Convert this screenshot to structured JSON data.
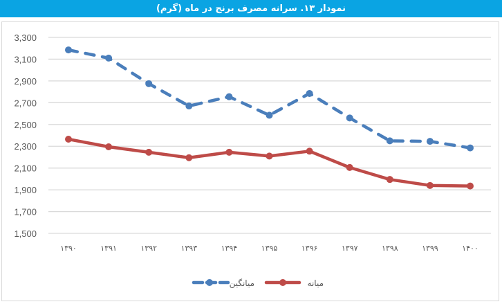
{
  "header": {
    "title": "نمودار ۱۳. سرانه مصرف برنج در ماه (گرم)",
    "background": "#0aa4e3"
  },
  "chart_data": {
    "type": "line",
    "title": "نمودار ۱۳. سرانه مصرف برنج در ماه (گرم)",
    "xlabel": "",
    "ylabel": "",
    "categories": [
      "۱۳۹۰",
      "۱۳۹۱",
      "۱۳۹۲",
      "۱۳۹۳",
      "۱۳۹۴",
      "۱۳۹۵",
      "۱۳۹۶",
      "۱۳۹۷",
      "۱۳۹۸",
      "۱۳۹۹",
      "۱۴۰۰"
    ],
    "series": [
      {
        "name": "میانگین",
        "color": "#4a7ebb",
        "style": "dashed",
        "values": [
          3185,
          3110,
          2875,
          2670,
          2755,
          2585,
          2785,
          2560,
          2350,
          2345,
          2285
        ]
      },
      {
        "name": "میانه",
        "color": "#be4b48",
        "style": "solid",
        "values": [
          2365,
          2295,
          2245,
          2195,
          2245,
          2210,
          2255,
          2105,
          1995,
          1940,
          1935
        ]
      }
    ],
    "ylim": [
      1500,
      3300
    ],
    "yticks": [
      "3,300",
      "3,100",
      "2,900",
      "2,700",
      "2,500",
      "2,300",
      "2,100",
      "1,900",
      "1,700",
      "1,500"
    ],
    "ytick_values": [
      3300,
      3100,
      2900,
      2700,
      2500,
      2300,
      2100,
      1900,
      1700,
      1500
    ],
    "grid": true,
    "legend_position": "bottom"
  },
  "legend": {
    "items": [
      {
        "label": "میانگین",
        "color": "#4a7ebb",
        "style": "dashed"
      },
      {
        "label": "میانه",
        "color": "#be4b48",
        "style": "solid"
      }
    ]
  }
}
